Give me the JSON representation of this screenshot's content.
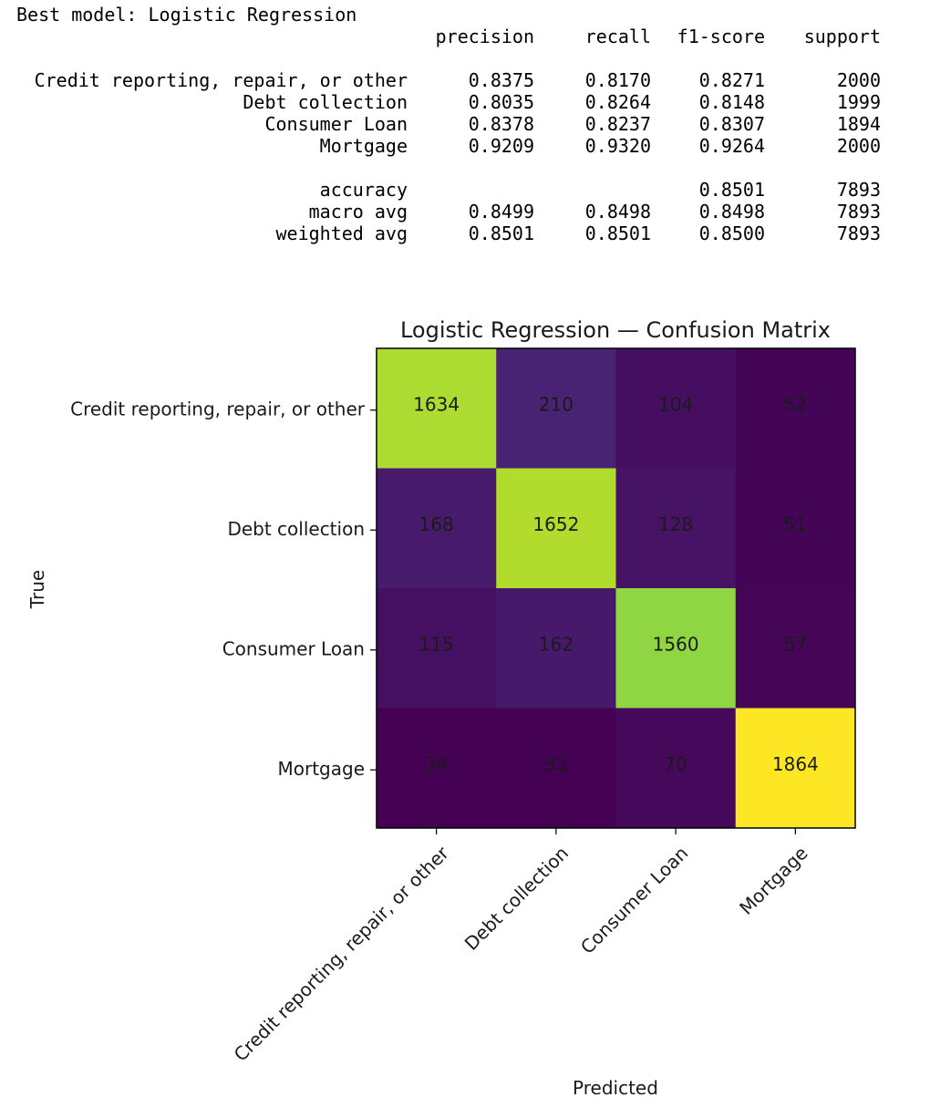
{
  "report": {
    "best_model_line": "Best model: Logistic Regression",
    "headers": [
      "precision",
      "recall",
      "f1-score",
      "support"
    ],
    "rows": [
      {
        "label": "Credit reporting, repair, or other",
        "values": [
          "0.8375",
          "0.8170",
          "0.8271",
          "2000"
        ]
      },
      {
        "label": "Debt collection",
        "values": [
          "0.8035",
          "0.8264",
          "0.8148",
          "1999"
        ]
      },
      {
        "label": "Consumer Loan",
        "values": [
          "0.8378",
          "0.8237",
          "0.8307",
          "1894"
        ]
      },
      {
        "label": "Mortgage",
        "values": [
          "0.9209",
          "0.9320",
          "0.9264",
          "2000"
        ]
      }
    ],
    "summary_rows": [
      {
        "label": "accuracy",
        "values": [
          "",
          "",
          "0.8501",
          "7893"
        ]
      },
      {
        "label": "macro avg",
        "values": [
          "0.8499",
          "0.8498",
          "0.8498",
          "7893"
        ]
      },
      {
        "label": "weighted avg",
        "values": [
          "0.8501",
          "0.8501",
          "0.8500",
          "7893"
        ]
      }
    ]
  },
  "chart_data": {
    "type": "heatmap",
    "title": "Logistic Regression — Confusion Matrix",
    "xlabel": "Predicted",
    "ylabel": "True",
    "row_labels": [
      "Credit reporting, repair, or other",
      "Debt collection",
      "Consumer Loan",
      "Mortgage"
    ],
    "col_labels": [
      "Credit reporting, repair, or other",
      "Debt collection",
      "Consumer Loan",
      "Mortgage"
    ],
    "values": [
      [
        1634,
        210,
        104,
        52
      ],
      [
        168,
        1652,
        128,
        51
      ],
      [
        115,
        162,
        1560,
        57
      ],
      [
        34,
        32,
        70,
        1864
      ]
    ],
    "colormap": "viridis",
    "colorbar": false
  }
}
